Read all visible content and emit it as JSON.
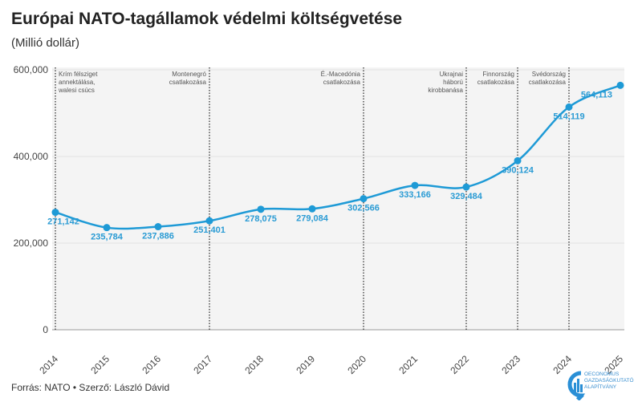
{
  "chart_data": {
    "type": "line",
    "title": "Európai NATO-tagállamok védelmi költségvetése",
    "subtitle": "(Millió dollár)",
    "x": [
      "2014",
      "2015",
      "2016",
      "2017",
      "2018",
      "2019",
      "2020",
      "2021",
      "2022",
      "2023",
      "2024",
      "2025"
    ],
    "values": [
      271142,
      235784,
      237886,
      251401,
      278075,
      279084,
      302566,
      333166,
      329484,
      390124,
      514119,
      564113
    ],
    "value_labels": [
      "271,142",
      "235,784",
      "237,886",
      "251,401",
      "278,075",
      "279,084",
      "302,566",
      "333,166",
      "329,484",
      "390,124",
      "514,119",
      "564,113"
    ],
    "yticks": [
      0,
      200000,
      400000,
      600000
    ],
    "ytick_labels": [
      "0",
      "200,000",
      "400,000",
      "600,000"
    ],
    "ylim": [
      0,
      600000
    ],
    "annotations": [
      {
        "x": "2014",
        "lines": [
          "Krím félsziget",
          "annektálása,",
          "walesi csúcs"
        ],
        "side": "right"
      },
      {
        "x": "2017",
        "lines": [
          "Montenegró",
          "csatlakozása"
        ],
        "side": "left"
      },
      {
        "x": "2020",
        "lines": [
          "É.-Macedónia",
          "csatlakozása"
        ],
        "side": "left"
      },
      {
        "x": "2022",
        "lines": [
          "Ukrajnai",
          "háború",
          "kirobbanása"
        ],
        "side": "left"
      },
      {
        "x": "2023",
        "lines": [
          "Finnország",
          "csatlakozása"
        ],
        "side": "left"
      },
      {
        "x": "2024",
        "lines": [
          "Svédország",
          "csatlakozása"
        ],
        "side": "left"
      }
    ],
    "line_color": "#1e9ad6",
    "grid": true
  },
  "footer": {
    "source": "Forrás: NATO • Szerző: László Dávid"
  },
  "logo": {
    "lines": [
      "OECONOMUS",
      "GAZDASÁGKUTATÓ",
      "ALAPÍTVÁNY"
    ]
  }
}
